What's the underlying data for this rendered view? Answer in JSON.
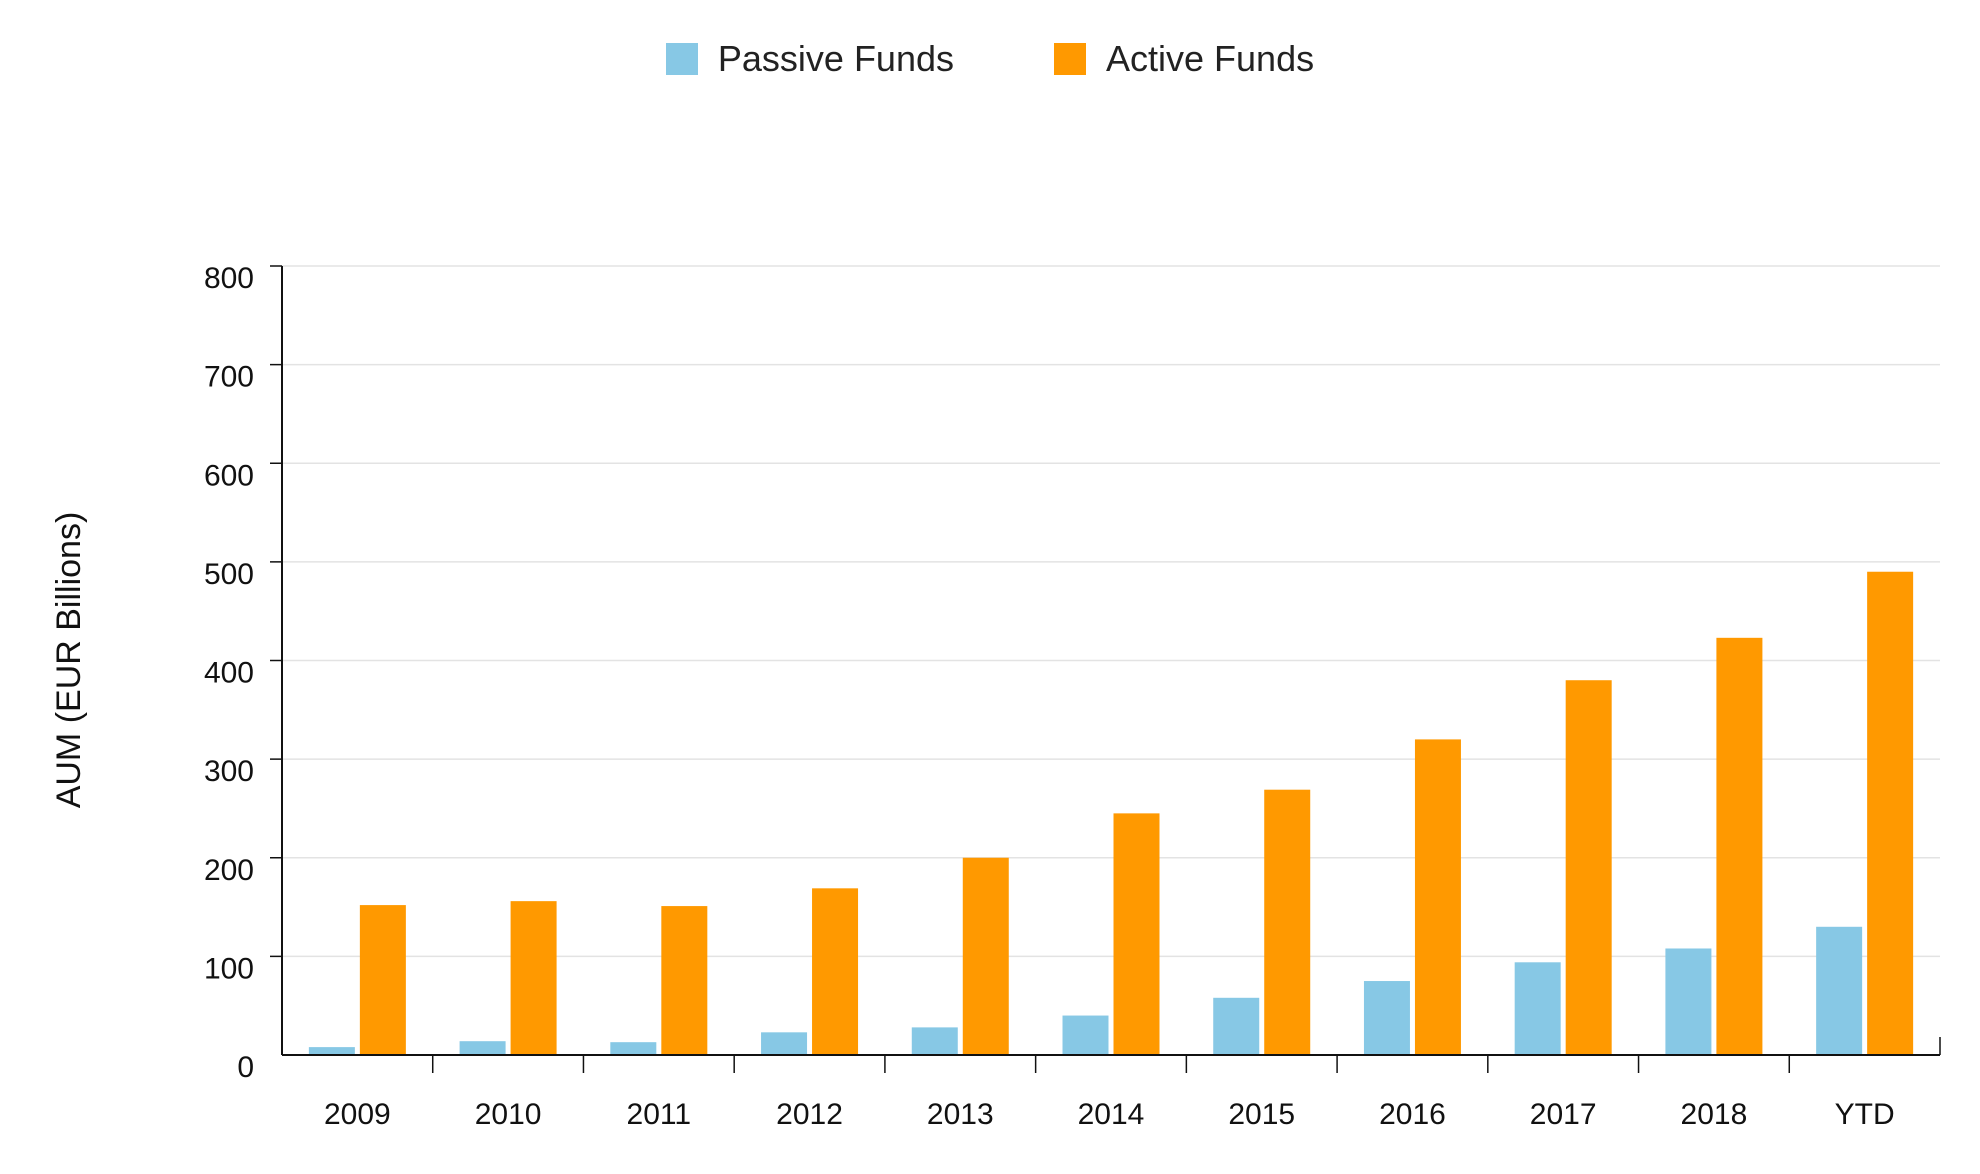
{
  "chart_data": {
    "type": "bar",
    "title": "",
    "xlabel": "",
    "ylabel": "AUM (EUR Billions)",
    "categories": [
      "2009",
      "2010",
      "2011",
      "2012",
      "2013",
      "2014",
      "2015",
      "2016",
      "2017",
      "2018",
      "YTD"
    ],
    "series": [
      {
        "name": "Passive Funds",
        "color": "#87C8E5",
        "values": [
          8,
          14,
          13,
          23,
          28,
          40,
          58,
          75,
          94,
          108,
          130
        ]
      },
      {
        "name": "Active Funds",
        "color": "#FF9900",
        "values": [
          152,
          156,
          151,
          169,
          200,
          245,
          269,
          320,
          380,
          423,
          490
        ]
      }
    ],
    "ylim": [
      0,
      800
    ],
    "yticks": [
      0,
      100,
      200,
      300,
      400,
      500,
      600,
      700,
      800
    ],
    "grid": true,
    "legend_position": "top-center"
  }
}
